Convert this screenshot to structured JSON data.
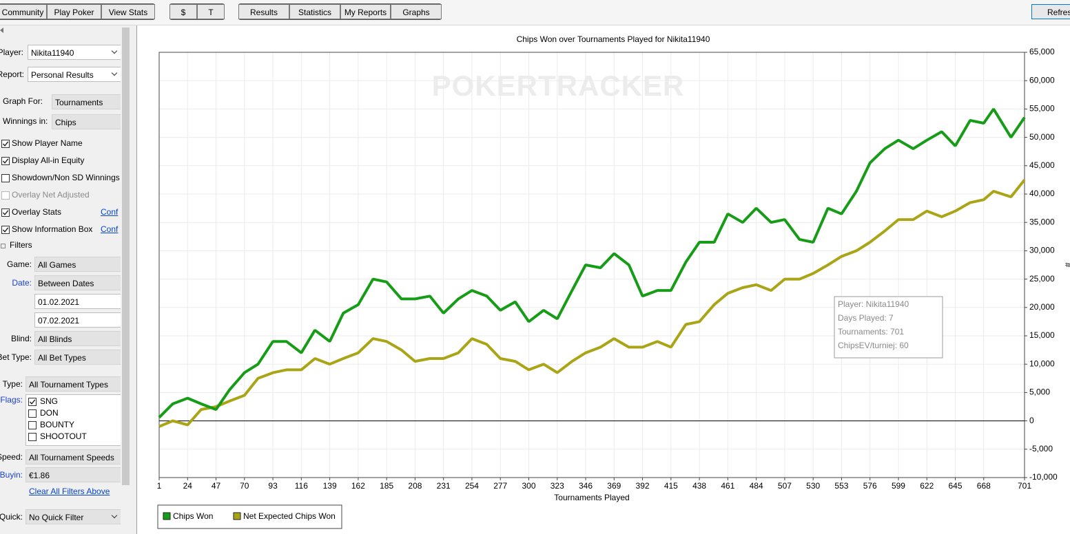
{
  "toolbar": {
    "groups": [
      [
        "Community",
        "Play Poker",
        "View Stats"
      ],
      [
        "$",
        "T"
      ],
      [
        "Results",
        "Statistics",
        "My Reports",
        "Graphs"
      ]
    ],
    "refresh": "Refresh"
  },
  "sidebar": {
    "player": {
      "label": "Player:",
      "value": "Nikita11940"
    },
    "report": {
      "label": "Report:",
      "value": "Personal Results"
    },
    "graph_for": {
      "label": "Graph For:",
      "value": "Tournaments"
    },
    "winnings_in": {
      "label": "Winnings in:",
      "value": "Chips"
    },
    "options": [
      {
        "label": "Show Player Name",
        "checked": true
      },
      {
        "label": "Display All-in Equity",
        "checked": true
      },
      {
        "label": "Showdown/Non SD Winnings",
        "checked": false
      },
      {
        "label": "Overlay Net Adjusted",
        "checked": false,
        "disabled": true
      },
      {
        "label": "Overlay Stats",
        "checked": true,
        "link": "Conf"
      },
      {
        "label": "Show Information Box",
        "checked": true,
        "link": "Conf"
      }
    ],
    "filters_title": "Filters",
    "filters": [
      {
        "label": "Game:",
        "value": "All Games"
      },
      {
        "label": "Date:",
        "value": "Between Dates"
      },
      {
        "label": "Blind:",
        "value": "All Blinds"
      },
      {
        "label": "Bet Type:",
        "value": "All Bet Types"
      }
    ],
    "date_from": "01.02.2021",
    "date_to": "07.02.2021",
    "type": {
      "label": "Type:",
      "value": "All Tournament Types"
    },
    "flags": {
      "label": "Flags:",
      "items": [
        {
          "label": "SNG",
          "checked": true
        },
        {
          "label": "DON",
          "checked": false
        },
        {
          "label": "BOUNTY",
          "checked": false
        },
        {
          "label": "SHOOTOUT",
          "checked": false
        }
      ]
    },
    "speed": {
      "label": "Speed:",
      "value": "All Tournament Speeds"
    },
    "buyin": {
      "label": "Buyin:",
      "value": "€1.86"
    },
    "clear_link": "Clear All Filters Above",
    "quick": {
      "label": "Quick:",
      "value": "No Quick Filter"
    }
  },
  "chart_data": {
    "type": "line",
    "title": "Chips Won over Tournaments Played for Nikita11940",
    "watermark": "POKERTRACKER",
    "x_label": "Tournaments Played",
    "y_label": "#",
    "xlim": [
      1,
      701
    ],
    "xticks": [
      1,
      24,
      47,
      70,
      93,
      116,
      139,
      162,
      185,
      208,
      231,
      254,
      277,
      300,
      323,
      346,
      369,
      392,
      415,
      438,
      461,
      484,
      507,
      530,
      553,
      576,
      599,
      622,
      645,
      668,
      701
    ],
    "ylim": [
      -10000,
      65000
    ],
    "yticks": [
      {
        "value": -10000,
        "label": "-10,000"
      },
      {
        "value": -5000,
        "label": "-5,000"
      },
      0,
      {
        "value": 5000,
        "label": "5,000"
      },
      {
        "value": 10000,
        "label": "10,000"
      },
      {
        "value": 15000,
        "label": "15,000"
      },
      {
        "value": 20000,
        "label": "20,000"
      },
      {
        "value": 25000,
        "label": "25,000"
      },
      {
        "value": 30000,
        "label": "30,000"
      },
      {
        "value": 35000,
        "label": "35,000"
      },
      {
        "value": 40000,
        "label": "40,000"
      },
      {
        "value": 45000,
        "label": "45,000"
      },
      {
        "value": 50000,
        "label": "50,000"
      },
      {
        "value": 55000,
        "label": "55,000"
      },
      {
        "value": 60000,
        "label": "60,000"
      },
      {
        "value": 65000,
        "label": "65,000"
      }
    ],
    "grid": true,
    "x": [
      1,
      12,
      24,
      35,
      47,
      58,
      70,
      81,
      93,
      104,
      116,
      127,
      139,
      150,
      162,
      174,
      185,
      197,
      208,
      220,
      231,
      243,
      254,
      266,
      277,
      289,
      300,
      312,
      323,
      335,
      346,
      358,
      369,
      381,
      392,
      404,
      415,
      427,
      438,
      450,
      461,
      473,
      484,
      496,
      507,
      519,
      530,
      542,
      553,
      565,
      576,
      588,
      599,
      611,
      622,
      634,
      645,
      657,
      668,
      676,
      690,
      701
    ],
    "series": [
      {
        "name": "Chips Won",
        "color": "#169c16",
        "values": [
          600,
          3000,
          4000,
          3000,
          2000,
          5500,
          8500,
          10000,
          14000,
          14000,
          12000,
          16000,
          14000,
          19000,
          20500,
          25000,
          24500,
          21500,
          21500,
          22000,
          19000,
          21500,
          23000,
          22000,
          19500,
          21000,
          17500,
          19500,
          18000,
          23000,
          27500,
          27000,
          29500,
          27500,
          22000,
          23000,
          23000,
          28000,
          31500,
          31500,
          36500,
          35000,
          37500,
          35000,
          35500,
          32000,
          31500,
          37500,
          36500,
          40500,
          45500,
          48000,
          49500,
          48000,
          49500,
          51000,
          48500,
          53000,
          52500,
          55000,
          50000,
          53500
        ]
      },
      {
        "name": "Net Expected Chips Won",
        "color": "#a9a516",
        "values": [
          -1000,
          0,
          -700,
          2000,
          2500,
          3500,
          4500,
          7500,
          8500,
          9000,
          9000,
          11000,
          10000,
          11000,
          12000,
          14500,
          14000,
          12500,
          10500,
          11000,
          11000,
          12000,
          14500,
          13500,
          11000,
          10500,
          9000,
          10000,
          8500,
          10500,
          12000,
          13000,
          14500,
          13000,
          13000,
          14000,
          13000,
          17000,
          17500,
          20500,
          22500,
          23500,
          24000,
          23000,
          25000,
          25000,
          26000,
          27500,
          29000,
          30000,
          31500,
          33500,
          35500,
          35500,
          37000,
          36000,
          37000,
          38500,
          39000,
          40500,
          39500,
          42500
        ]
      }
    ],
    "info_box": [
      "Player: Nikita11940",
      "Days Played: 7",
      "Tournaments: 701",
      "ChipsEV/turniej: 60"
    ]
  }
}
